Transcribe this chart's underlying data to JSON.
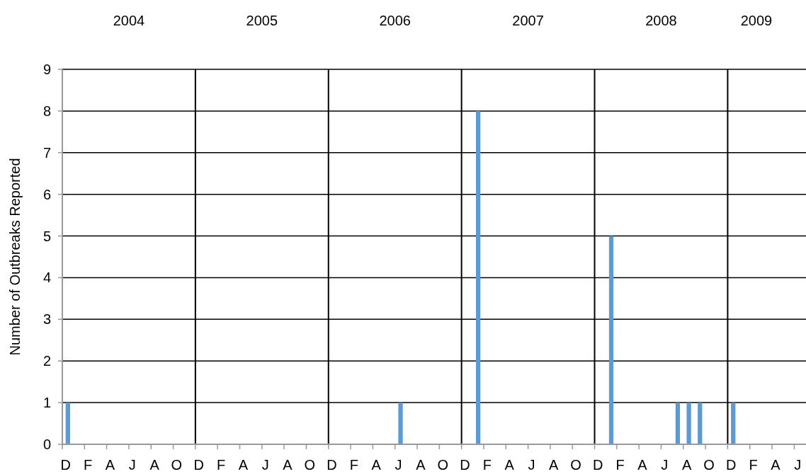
{
  "chart_data": {
    "type": "bar",
    "ylabel": "Number of Outbreaks Reported",
    "annotations": [
      "2004",
      "2005",
      "2006",
      "2007",
      "2008",
      "2009"
    ],
    "categories": [
      "D",
      null,
      "F",
      null,
      "A",
      null,
      "J",
      null,
      "A",
      null,
      "O",
      null,
      "D",
      null,
      "F",
      null,
      "A",
      null,
      "J",
      null,
      "A",
      null,
      "O",
      null,
      "D",
      null,
      "F",
      null,
      "A",
      null,
      "J",
      null,
      "A",
      null,
      "O",
      null,
      "D",
      null,
      "F",
      null,
      "A",
      null,
      "J",
      null,
      "A",
      null,
      "O",
      null,
      "D",
      null,
      "F",
      null,
      "A",
      null,
      "J",
      null,
      "A",
      null,
      "O",
      null,
      "D",
      null,
      "F",
      null,
      "A",
      null,
      "J"
    ],
    "values": [
      1,
      0,
      0,
      0,
      0,
      0,
      0,
      0,
      0,
      0,
      0,
      0,
      0,
      0,
      0,
      0,
      0,
      0,
      0,
      0,
      0,
      0,
      0,
      0,
      0,
      0,
      0,
      0,
      0,
      0,
      1,
      0,
      0,
      0,
      0,
      0,
      0,
      8,
      0,
      0,
      0,
      0,
      0,
      0,
      0,
      0,
      0,
      0,
      0,
      5,
      0,
      0,
      0,
      0,
      0,
      1,
      1,
      1,
      0,
      0,
      1,
      0,
      0,
      0,
      0,
      0,
      0
    ],
    "color": "#5b9bd5",
    "ylim": [
      0,
      9
    ],
    "yticks": [
      0,
      1,
      2,
      3,
      4,
      5,
      6,
      7,
      8,
      9
    ],
    "grid": true
  }
}
